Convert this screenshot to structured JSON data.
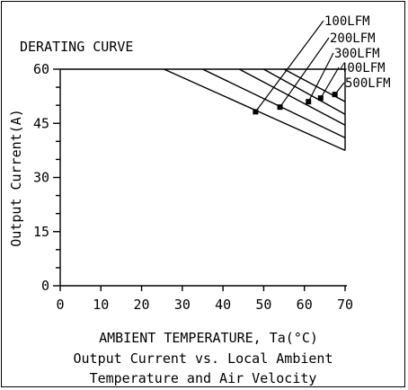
{
  "chart_data": {
    "type": "line",
    "title": "DERATING CURVE",
    "xlabel": "AMBIENT TEMPERATURE, Ta(°C)",
    "ylabel": "Output Current(A)",
    "caption_lines": [
      "Output Current vs. Local Ambient",
      "Temperature and Air Velocity"
    ],
    "xlim": [
      0,
      70
    ],
    "ylim": [
      0,
      60
    ],
    "x_ticks": [
      0,
      10,
      20,
      30,
      40,
      50,
      60,
      70
    ],
    "y_ticks": [
      0,
      15,
      30,
      45,
      60
    ],
    "y_minor_step": 5,
    "grid": false,
    "series": [
      {
        "name": "100LFM",
        "x": [
          25.5,
          70
        ],
        "y": [
          60,
          37.5
        ],
        "marker": [
          48,
          48.2
        ]
      },
      {
        "name": "200LFM",
        "x": [
          35,
          70
        ],
        "y": [
          60,
          41
        ],
        "marker": [
          54,
          49.5
        ]
      },
      {
        "name": "300LFM",
        "x": [
          44,
          70
        ],
        "y": [
          60,
          44.5
        ],
        "marker": [
          61,
          51
        ]
      },
      {
        "name": "400LFM",
        "x": [
          50,
          70
        ],
        "y": [
          60,
          47.5
        ],
        "marker": [
          64,
          52
        ]
      },
      {
        "name": "500LFM",
        "x": [
          55,
          70
        ],
        "y": [
          60,
          51
        ],
        "marker": [
          67.5,
          53
        ]
      }
    ]
  }
}
